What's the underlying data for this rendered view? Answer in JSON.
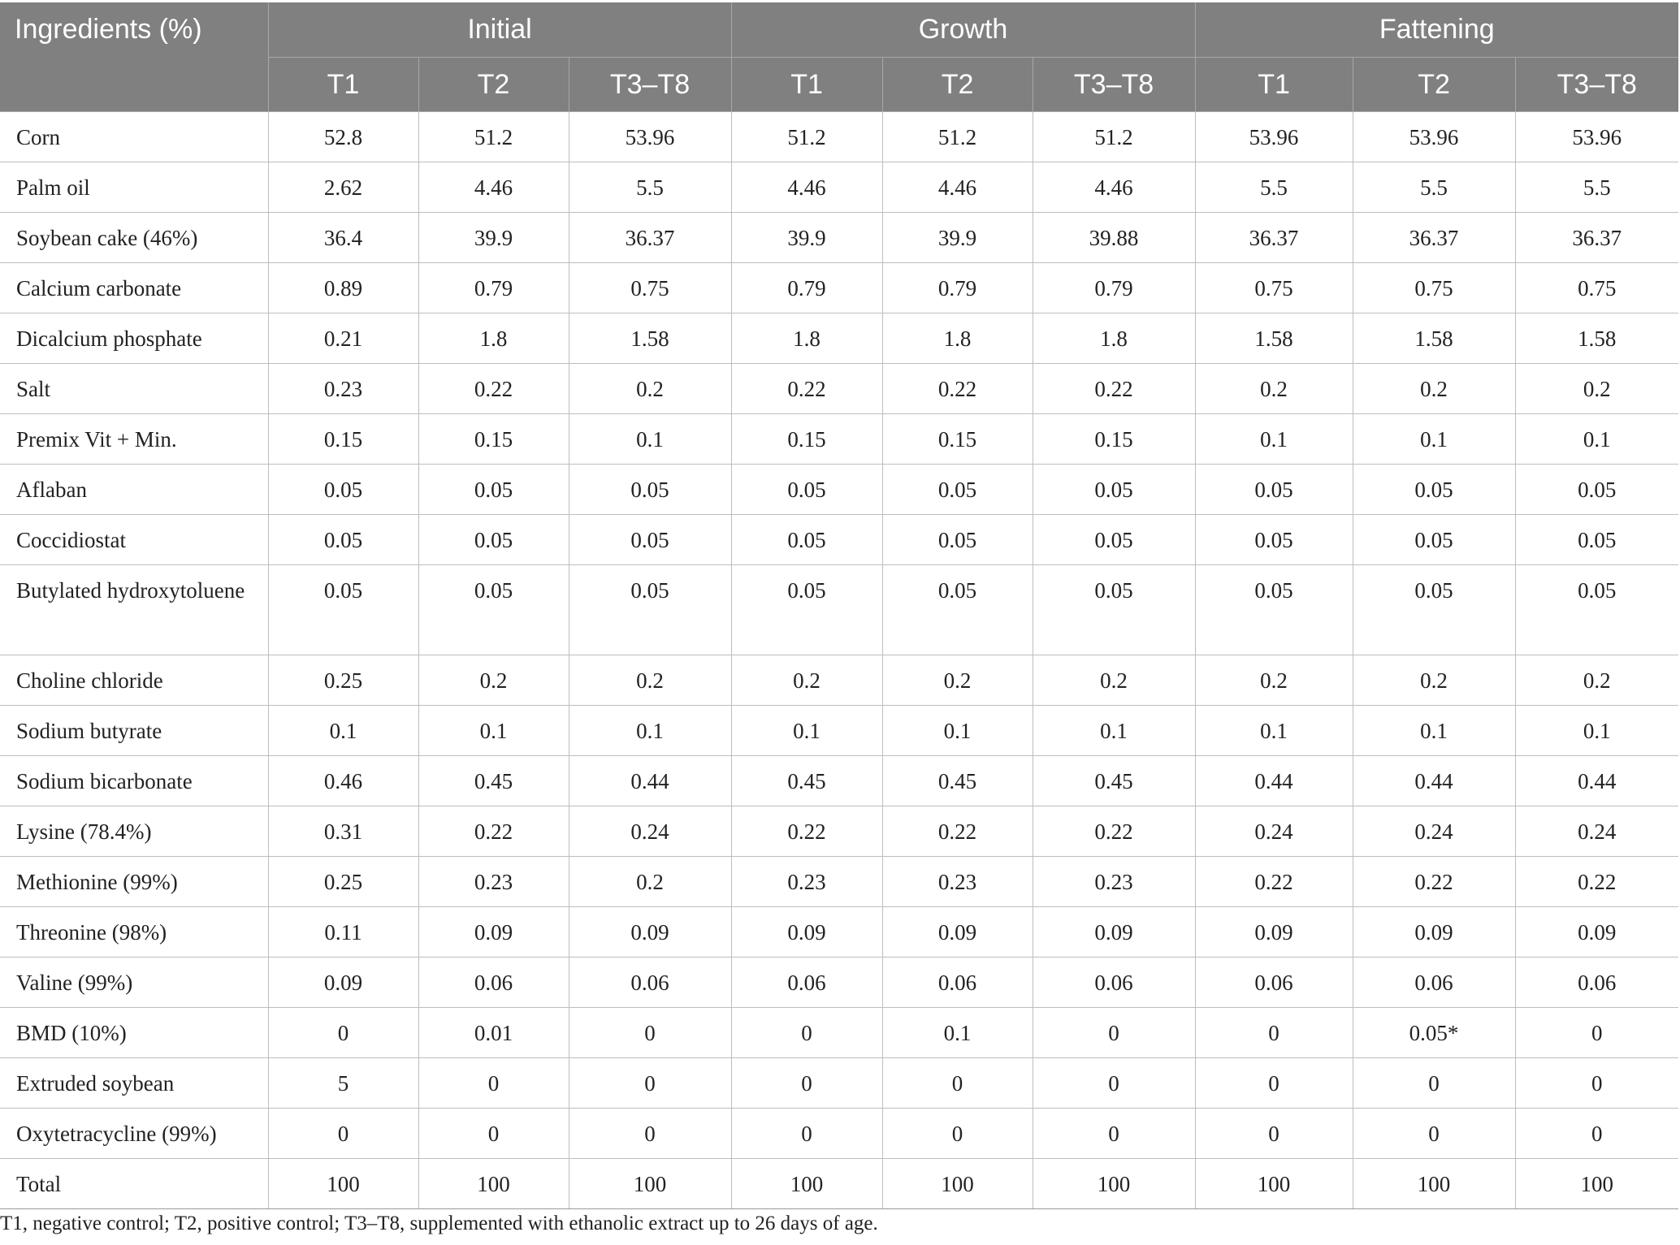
{
  "table": {
    "ingredient_header": "Ingredients (%)",
    "phases": [
      "Initial",
      "Growth",
      "Fattening"
    ],
    "treatments": [
      "T1",
      "T2",
      "T3–T8",
      "T1",
      "T2",
      "T3–T8",
      "T1",
      "T2",
      "T3–T8"
    ],
    "rows": [
      {
        "name": "Corn",
        "values": [
          "52.8",
          "51.2",
          "53.96",
          "51.2",
          "51.2",
          "51.2",
          "53.96",
          "53.96",
          "53.96"
        ]
      },
      {
        "name": "Palm oil",
        "values": [
          "2.62",
          "4.46",
          "5.5",
          "4.46",
          "4.46",
          "4.46",
          "5.5",
          "5.5",
          "5.5"
        ]
      },
      {
        "name": "Soybean cake (46%)",
        "values": [
          "36.4",
          "39.9",
          "36.37",
          "39.9",
          "39.9",
          "39.88",
          "36.37",
          "36.37",
          "36.37"
        ]
      },
      {
        "name": "Calcium carbonate",
        "values": [
          "0.89",
          "0.79",
          "0.75",
          "0.79",
          "0.79",
          "0.79",
          "0.75",
          "0.75",
          "0.75"
        ]
      },
      {
        "name": "Dicalcium phosphate",
        "values": [
          "0.21",
          "1.8",
          "1.58",
          "1.8",
          "1.8",
          "1.8",
          "1.58",
          "1.58",
          "1.58"
        ]
      },
      {
        "name": "Salt",
        "values": [
          "0.23",
          "0.22",
          "0.2",
          "0.22",
          "0.22",
          "0.22",
          "0.2",
          "0.2",
          "0.2"
        ]
      },
      {
        "name": "Premix Vit + Min.",
        "values": [
          "0.15",
          "0.15",
          "0.1",
          "0.15",
          "0.15",
          "0.15",
          "0.1",
          "0.1",
          "0.1"
        ]
      },
      {
        "name": "Aflaban",
        "values": [
          "0.05",
          "0.05",
          "0.05",
          "0.05",
          "0.05",
          "0.05",
          "0.05",
          "0.05",
          "0.05"
        ]
      },
      {
        "name": "Coccidiostat",
        "values": [
          "0.05",
          "0.05",
          "0.05",
          "0.05",
          "0.05",
          "0.05",
          "0.05",
          "0.05",
          "0.05"
        ]
      },
      {
        "name": "Butylated hydroxytoluene",
        "values": [
          "0.05",
          "0.05",
          "0.05",
          "0.05",
          "0.05",
          "0.05",
          "0.05",
          "0.05",
          "0.05"
        ]
      },
      {
        "name": "Choline chloride",
        "values": [
          "0.25",
          "0.2",
          "0.2",
          "0.2",
          "0.2",
          "0.2",
          "0.2",
          "0.2",
          "0.2"
        ]
      },
      {
        "name": "Sodium butyrate",
        "values": [
          "0.1",
          "0.1",
          "0.1",
          "0.1",
          "0.1",
          "0.1",
          "0.1",
          "0.1",
          "0.1"
        ]
      },
      {
        "name": "Sodium bicarbonate",
        "values": [
          "0.46",
          "0.45",
          "0.44",
          "0.45",
          "0.45",
          "0.45",
          "0.44",
          "0.44",
          "0.44"
        ]
      },
      {
        "name": "Lysine (78.4%)",
        "values": [
          "0.31",
          "0.22",
          "0.24",
          "0.22",
          "0.22",
          "0.22",
          "0.24",
          "0.24",
          "0.24"
        ]
      },
      {
        "name": "Methionine (99%)",
        "values": [
          "0.25",
          "0.23",
          "0.2",
          "0.23",
          "0.23",
          "0.23",
          "0.22",
          "0.22",
          "0.22"
        ]
      },
      {
        "name": "Threonine (98%)",
        "values": [
          "0.11",
          "0.09",
          "0.09",
          "0.09",
          "0.09",
          "0.09",
          "0.09",
          "0.09",
          "0.09"
        ]
      },
      {
        "name": "Valine (99%)",
        "values": [
          "0.09",
          "0.06",
          "0.06",
          "0.06",
          "0.06",
          "0.06",
          "0.06",
          "0.06",
          "0.06"
        ]
      },
      {
        "name": "BMD (10%)",
        "values": [
          "0",
          "0.01",
          "0",
          "0",
          "0.1",
          "0",
          "0",
          "0.05*",
          "0"
        ]
      },
      {
        "name": "Extruded soybean",
        "values": [
          "5",
          "0",
          "0",
          "0",
          "0",
          "0",
          "0",
          "0",
          "0"
        ]
      },
      {
        "name": "Oxytetracycline (99%)",
        "values": [
          "0",
          "0",
          "0",
          "0",
          "0",
          "0",
          "0",
          "0",
          "0"
        ]
      },
      {
        "name": "Total",
        "values": [
          "100",
          "100",
          "100",
          "100",
          "100",
          "100",
          "100",
          "100",
          "100"
        ]
      }
    ]
  },
  "footnote": "T1, negative control; T2, positive control; T3–T8, supplemented with ethanolic extract up to 26 days of age.",
  "colors": {
    "header_background": "#808080",
    "header_text": "#ffffff",
    "grid_line": "#bdbdbd",
    "body_text": "#222222"
  }
}
